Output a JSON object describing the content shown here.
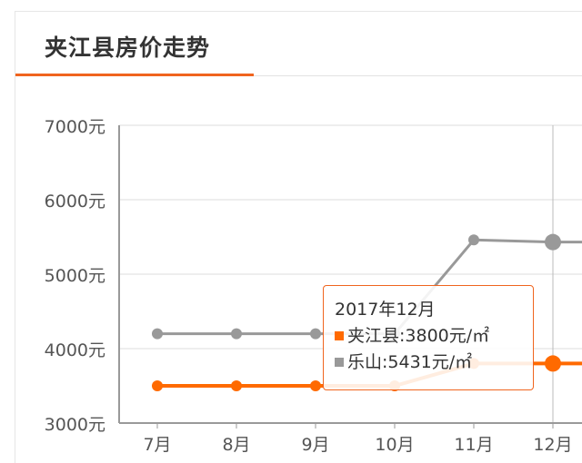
{
  "header": {
    "title": "夹江县房价走势"
  },
  "colors": {
    "accent": "#f0641e",
    "series_local": "#ff6a00",
    "series_city": "#999999",
    "grid": "#dddddd",
    "axis": "#999999"
  },
  "chart_data": {
    "type": "line",
    "title": "夹江县房价走势",
    "categories": [
      "7月",
      "8月",
      "9月",
      "10月",
      "11月",
      "12月"
    ],
    "series": [
      {
        "name": "夹江县",
        "color": "#ff6a00",
        "values": [
          3500,
          3500,
          3500,
          3500,
          3800,
          3800
        ]
      },
      {
        "name": "乐山",
        "color": "#999999",
        "values": [
          4200,
          4200,
          4200,
          4200,
          5460,
          5431
        ]
      }
    ],
    "yticks": [
      "3000元",
      "4000元",
      "5000元",
      "6000元",
      "7000元"
    ],
    "ytick_values": [
      3000,
      4000,
      5000,
      6000,
      7000
    ],
    "ylim": [
      3000,
      7000
    ],
    "grid": true,
    "highlighted_category": "12月"
  },
  "tooltip": {
    "title": "2017年12月",
    "rows": [
      {
        "label": "夹江县:3800元/㎡",
        "color": "#ff6a00"
      },
      {
        "label": "乐山:5431元/㎡",
        "color": "#999999"
      }
    ]
  }
}
